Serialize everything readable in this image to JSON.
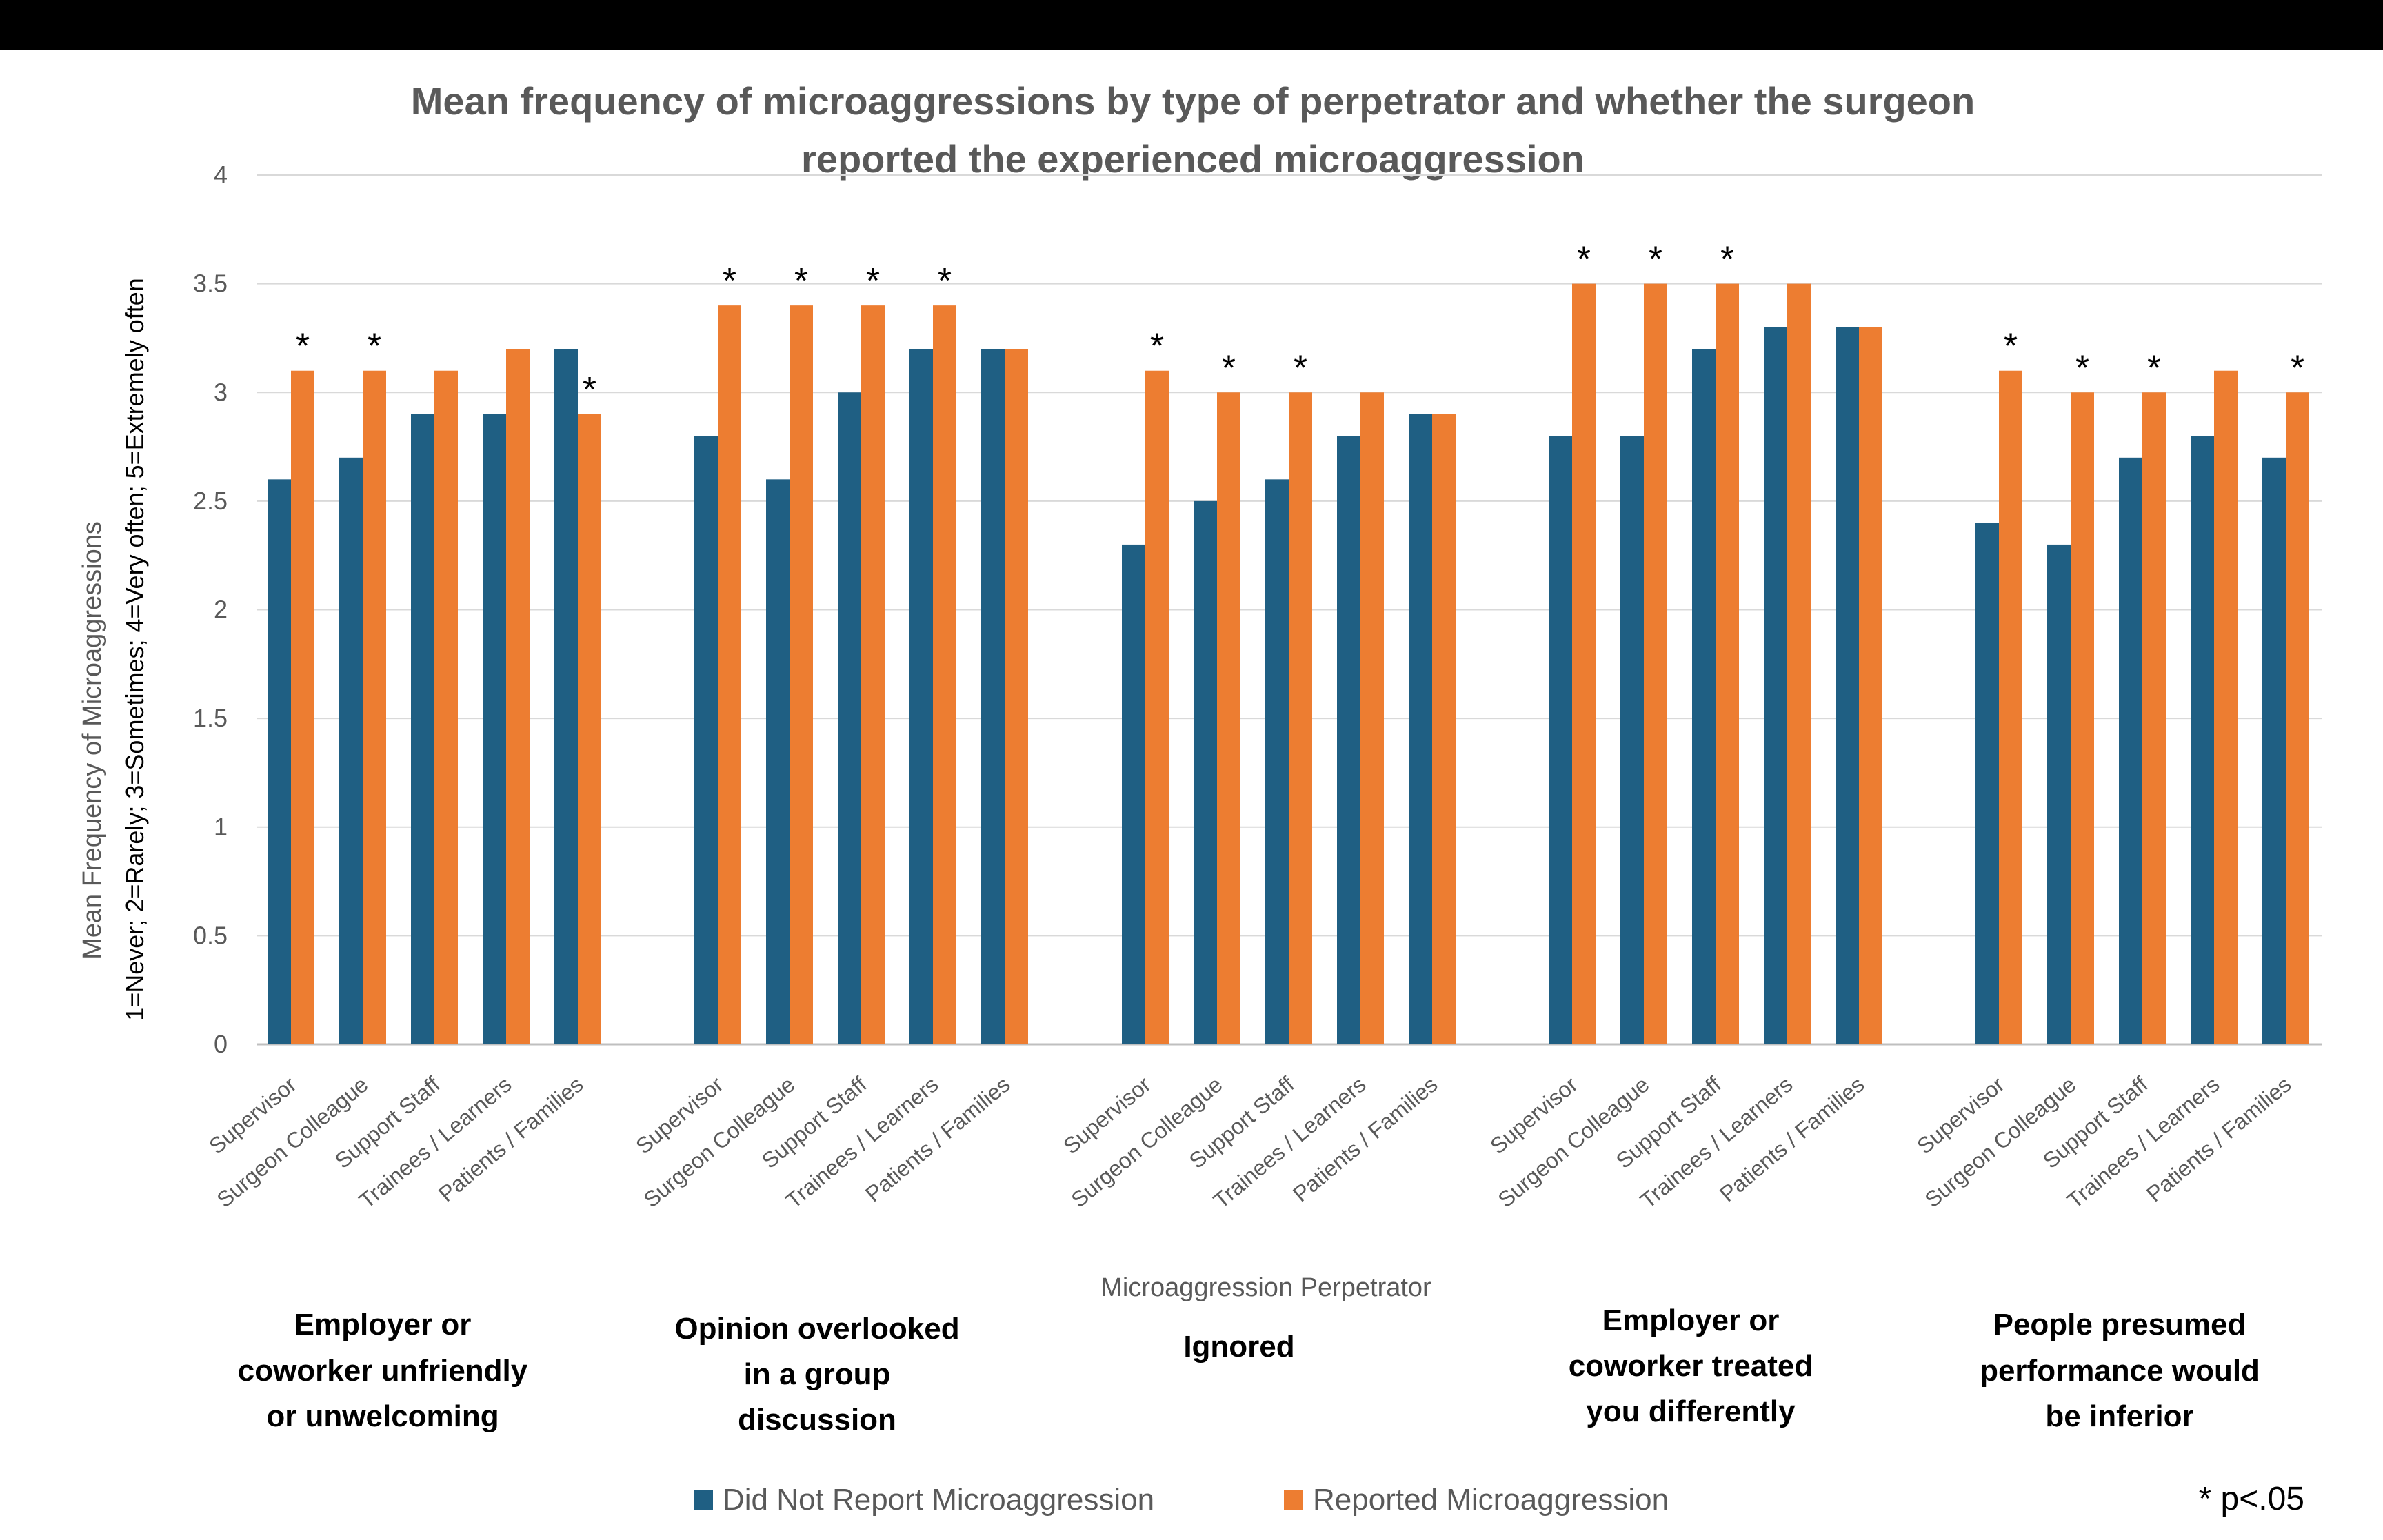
{
  "chart_data": {
    "type": "bar",
    "title_lines": [
      "Mean frequency of microaggressions  by type of perpetrator and whether the surgeon",
      "reported the experienced microaggression"
    ],
    "ylabel_lines": [
      "Mean Frequency of Microaggressions",
      "1=Never; 2=Rarely; 3=Sometimes; 4=Very often; 5=Extremely often"
    ],
    "xlabel": "Microaggression Perpetrator",
    "ylim": [
      0,
      4
    ],
    "yticks": [
      "0",
      "0.5",
      "1",
      "1.5",
      "2",
      "2.5",
      "3",
      "3.5",
      "4"
    ],
    "ytick_values": [
      0,
      0.5,
      1,
      1.5,
      2,
      2.5,
      3,
      3.5,
      4
    ],
    "grid": true,
    "legend_position": "bottom",
    "series": [
      {
        "name": "Did Not Report Microaggression",
        "color": "#1f5f83"
      },
      {
        "name": "Reported Microaggression",
        "color": "#ed7d31"
      }
    ],
    "groups": [
      {
        "label_lines": [
          "Employer or",
          "coworker unfriendly",
          "or unwelcoming"
        ],
        "categories": [
          "Supervisor",
          "Surgeon Colleague",
          "Support Staff",
          "Trainees / Learners",
          "Patients / Families"
        ],
        "not_reported": [
          2.6,
          2.7,
          2.9,
          2.9,
          3.2
        ],
        "reported": [
          3.1,
          3.1,
          3.1,
          3.2,
          2.9
        ],
        "significant": [
          true,
          true,
          false,
          false,
          true
        ]
      },
      {
        "label_lines": [
          "Opinion overlooked",
          "in a group",
          "discussion"
        ],
        "categories": [
          "Supervisor",
          "Surgeon Colleague",
          "Support Staff",
          "Trainees / Learners",
          "Patients / Families"
        ],
        "not_reported": [
          2.8,
          2.6,
          3.0,
          3.2,
          3.2
        ],
        "reported": [
          3.4,
          3.4,
          3.4,
          3.4,
          3.2
        ],
        "significant": [
          true,
          true,
          true,
          true,
          false
        ]
      },
      {
        "label_lines": [
          "Ignored"
        ],
        "categories": [
          "Supervisor",
          "Surgeon Colleague",
          "Support Staff",
          "Trainees / Learners",
          "Patients / Families"
        ],
        "not_reported": [
          2.3,
          2.5,
          2.6,
          2.8,
          2.9
        ],
        "reported": [
          3.1,
          3.0,
          3.0,
          3.0,
          2.9
        ],
        "significant": [
          true,
          true,
          true,
          false,
          false
        ]
      },
      {
        "label_lines": [
          "Employer or",
          "coworker treated",
          "you differently"
        ],
        "categories": [
          "Supervisor",
          "Surgeon Colleague",
          "Support Staff",
          "Trainees / Learners",
          "Patients / Families"
        ],
        "not_reported": [
          2.8,
          2.8,
          3.2,
          3.3,
          3.3
        ],
        "reported": [
          3.5,
          3.5,
          3.5,
          3.5,
          3.3
        ],
        "significant": [
          true,
          true,
          true,
          false,
          false
        ]
      },
      {
        "label_lines": [
          "People presumed",
          "performance would",
          "be inferior"
        ],
        "categories": [
          "Supervisor",
          "Surgeon Colleague",
          "Support Staff",
          "Trainees / Learners",
          "Patients / Families"
        ],
        "not_reported": [
          2.4,
          2.3,
          2.7,
          2.8,
          2.7
        ],
        "reported": [
          3.1,
          3.0,
          3.0,
          3.1,
          3.0
        ],
        "significant": [
          true,
          true,
          true,
          false,
          true
        ]
      }
    ],
    "significance_marker": "*",
    "significance_note": "* p<.05"
  }
}
